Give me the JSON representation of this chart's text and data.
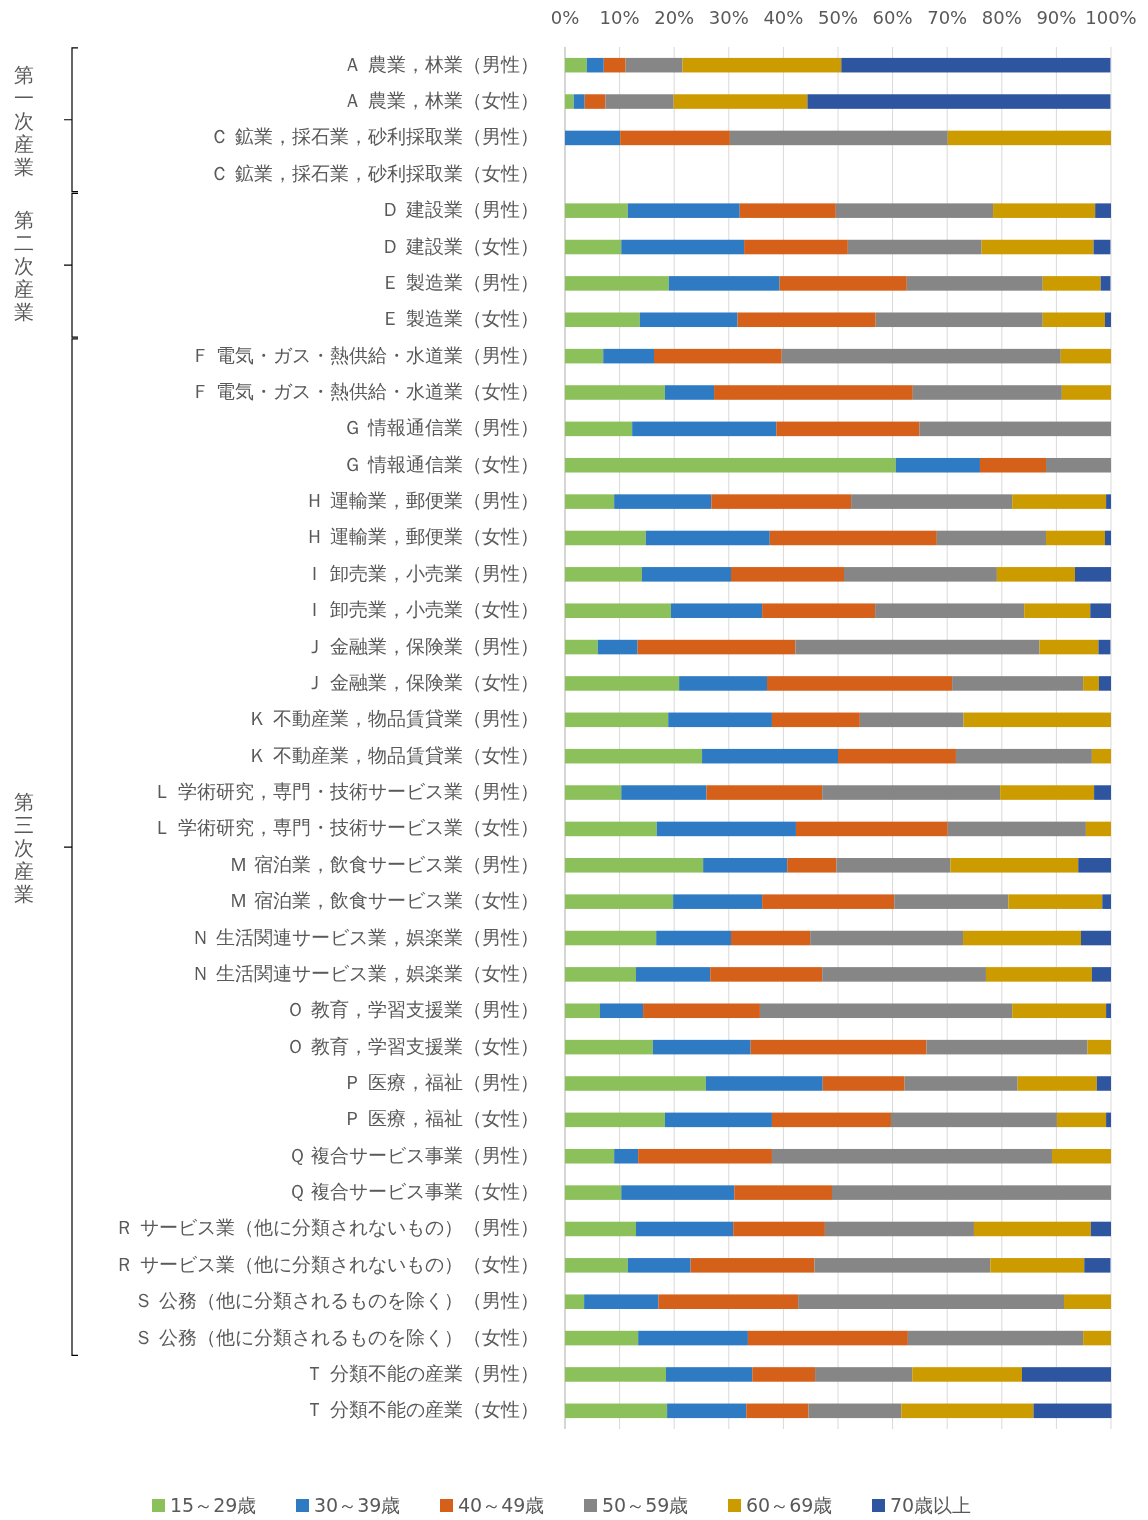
{
  "chart_data": {
    "type": "bar",
    "orientation": "horizontal",
    "stacked": true,
    "categories": [
      "Ａ 農業，林業（男性）",
      "Ａ 農業，林業（女性）",
      "Ｃ 鉱業，採石業，砂利採取業（男性）",
      "Ｃ 鉱業，採石業，砂利採取業（女性）",
      "Ｄ 建設業（男性）",
      "Ｄ 建設業（女性）",
      "Ｅ 製造業（男性）",
      "Ｅ 製造業（女性）",
      "Ｆ 電気・ガス・熱供給・水道業（男性）",
      "Ｆ 電気・ガス・熱供給・水道業（女性）",
      "Ｇ 情報通信業（男性）",
      "Ｇ 情報通信業（女性）",
      "Ｈ 運輸業，郵便業（男性）",
      "Ｈ 運輸業，郵便業（女性）",
      "Ｉ 卸売業，小売業（男性）",
      "Ｉ 卸売業，小売業（女性）",
      "Ｊ 金融業，保険業（男性）",
      "Ｊ 金融業，保険業（女性）",
      "Ｋ 不動産業，物品賃貸業（男性）",
      "Ｋ 不動産業，物品賃貸業（女性）",
      "Ｌ 学術研究，専門・技術サービス業（男性）",
      "Ｌ 学術研究，専門・技術サービス業（女性）",
      "Ｍ 宿泊業，飲食サービス業（男性）",
      "Ｍ 宿泊業，飲食サービス業（女性）",
      "Ｎ 生活関連サービス業，娯楽業（男性）",
      "Ｎ 生活関連サービス業，娯楽業（女性）",
      "Ｏ 教育，学習支援業（男性）",
      "Ｏ 教育，学習支援業（女性）",
      "Ｐ 医療，福祉（男性）",
      "Ｐ 医療，福祉（女性）",
      "Ｑ 複合サービス事業（男性）",
      "Ｑ 複合サービス事業（女性）",
      "Ｒ サービス業（他に分類されないもの）（男性）",
      "Ｒ サービス業（他に分類されないもの）（女性）",
      "Ｓ 公務（他に分類されるものを除く）（男性）",
      "Ｓ 公務（他に分類されるものを除く）（女性）",
      "Ｔ 分類不能の産業（男性）",
      "Ｔ 分類不能の産業（女性）"
    ],
    "series": [
      {
        "name": "15～29歳",
        "color": "#8cc05a",
        "values": [
          4.0,
          1.6,
          0,
          null,
          11.5,
          10.3,
          19.0,
          13.7,
          7.0,
          18.3,
          12.3,
          60.6,
          9.0,
          14.8,
          14.1,
          19.4,
          6.0,
          20.9,
          18.9,
          25.1,
          10.3,
          16.8,
          25.3,
          19.8,
          16.7,
          13.0,
          6.4,
          16.1,
          25.8,
          18.3,
          9.0,
          10.3,
          13.0,
          11.5,
          3.5,
          13.4,
          18.5,
          18.7
        ]
      },
      {
        "name": "30～39歳",
        "color": "#2e7bc4",
        "values": [
          3.1,
          2.0,
          10.1,
          null,
          20.5,
          22.5,
          20.3,
          17.9,
          9.3,
          9.0,
          26.4,
          15.4,
          17.8,
          22.7,
          16.3,
          16.7,
          7.3,
          16.1,
          19.0,
          24.9,
          15.6,
          25.5,
          15.4,
          16.3,
          13.7,
          13.6,
          7.9,
          17.9,
          21.4,
          19.6,
          4.4,
          20.7,
          17.8,
          11.5,
          13.6,
          20.1,
          15.8,
          14.5
        ]
      },
      {
        "name": "40～49歳",
        "color": "#d4601a",
        "values": [
          4.0,
          3.8,
          20.1,
          null,
          17.6,
          19.0,
          23.3,
          25.3,
          23.4,
          36.4,
          26.2,
          12.1,
          25.6,
          30.6,
          20.7,
          20.7,
          28.9,
          33.9,
          16.1,
          21.6,
          21.2,
          27.8,
          9.0,
          24.2,
          14.5,
          20.5,
          21.4,
          32.2,
          15.0,
          21.8,
          24.5,
          17.9,
          16.8,
          22.7,
          25.6,
          29.3,
          11.5,
          11.4
        ]
      },
      {
        "name": "50～59歳",
        "color": "#868686",
        "values": [
          10.4,
          12.5,
          39.9,
          null,
          28.8,
          24.5,
          24.9,
          30.6,
          51.1,
          27.3,
          35.1,
          11.9,
          29.5,
          20.0,
          28.0,
          27.3,
          44.7,
          24.0,
          19.0,
          24.9,
          32.6,
          25.3,
          20.9,
          20.9,
          28.0,
          30.0,
          46.2,
          29.5,
          20.7,
          30.4,
          51.3,
          51.1,
          27.3,
          32.2,
          48.7,
          32.1,
          17.8,
          17.0
        ]
      },
      {
        "name": "60～69歳",
        "color": "#cc9b00",
        "values": [
          29.1,
          24.5,
          29.9,
          null,
          18.7,
          20.5,
          10.6,
          11.4,
          9.2,
          9.0,
          0,
          0,
          17.2,
          10.8,
          14.3,
          12.1,
          10.8,
          2.9,
          27.0,
          3.5,
          17.2,
          4.6,
          23.4,
          17.2,
          21.6,
          19.4,
          17.2,
          4.3,
          14.5,
          9.0,
          10.8,
          0,
          21.4,
          17.2,
          8.6,
          5.1,
          20.1,
          24.2
        ]
      },
      {
        "name": "70歳以上",
        "color": "#2e55a0",
        "values": [
          49.3,
          55.5,
          0,
          null,
          2.9,
          3.1,
          1.8,
          1.1,
          0,
          0,
          0,
          0,
          0.9,
          1.1,
          6.6,
          3.8,
          2.2,
          2.2,
          0,
          0,
          3.1,
          0,
          6.0,
          1.6,
          5.5,
          3.5,
          0.9,
          0,
          2.6,
          0.9,
          0,
          0,
          3.7,
          4.8,
          0,
          0,
          16.3,
          14.3
        ]
      }
    ],
    "xlim": [
      0,
      100
    ],
    "xticks": [
      {
        "value": 0,
        "label": "0%"
      },
      {
        "value": 10,
        "label": "10%"
      },
      {
        "value": 20,
        "label": "20%"
      },
      {
        "value": 30,
        "label": "30%"
      },
      {
        "value": 40,
        "label": "40%"
      },
      {
        "value": 50,
        "label": "50%"
      },
      {
        "value": 60,
        "label": "60%"
      },
      {
        "value": 70,
        "label": "70%"
      },
      {
        "value": 80,
        "label": "80%"
      },
      {
        "value": 90,
        "label": "90%"
      },
      {
        "value": 100,
        "label": "100%"
      }
    ],
    "grid": "x",
    "legend": "bottom",
    "annotations": [
      "第一次産業",
      "第二次産業",
      "第三次産業"
    ]
  }
}
